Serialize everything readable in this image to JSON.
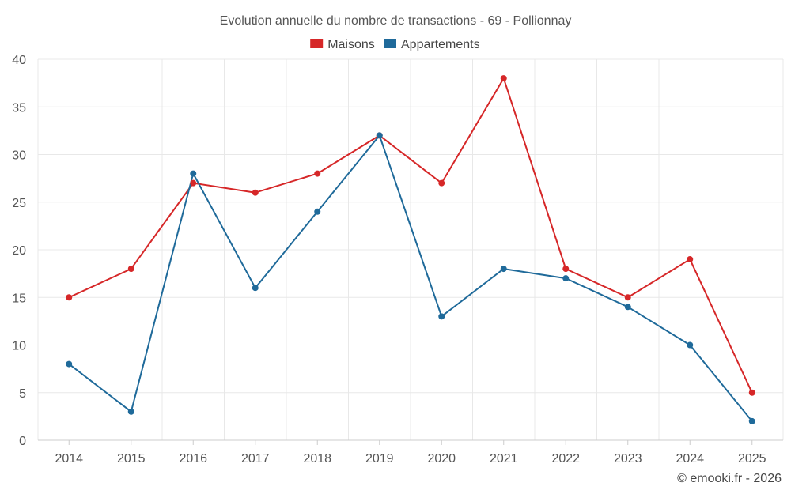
{
  "chart_data": {
    "type": "line",
    "title": "Evolution annuelle du nombre de transactions - 69 - Pollionnay",
    "categories": [
      "2014",
      "2015",
      "2016",
      "2017",
      "2018",
      "2019",
      "2020",
      "2021",
      "2022",
      "2023",
      "2024",
      "2025"
    ],
    "series": [
      {
        "name": "Maisons",
        "color": "#d62728",
        "values": [
          15,
          18,
          27,
          26,
          28,
          32,
          27,
          38,
          18,
          15,
          19,
          5
        ]
      },
      {
        "name": "Appartements",
        "color": "#1f6a9a",
        "values": [
          8,
          3,
          28,
          16,
          24,
          32,
          13,
          18,
          17,
          14,
          10,
          2
        ]
      }
    ],
    "ylim": [
      0,
      40
    ],
    "yticks": [
      0,
      5,
      10,
      15,
      20,
      25,
      30,
      35,
      40
    ],
    "xlabel": "",
    "ylabel": "",
    "grid": true,
    "legend_position": "top-center"
  },
  "credit": "© emooki.fr - 2026"
}
